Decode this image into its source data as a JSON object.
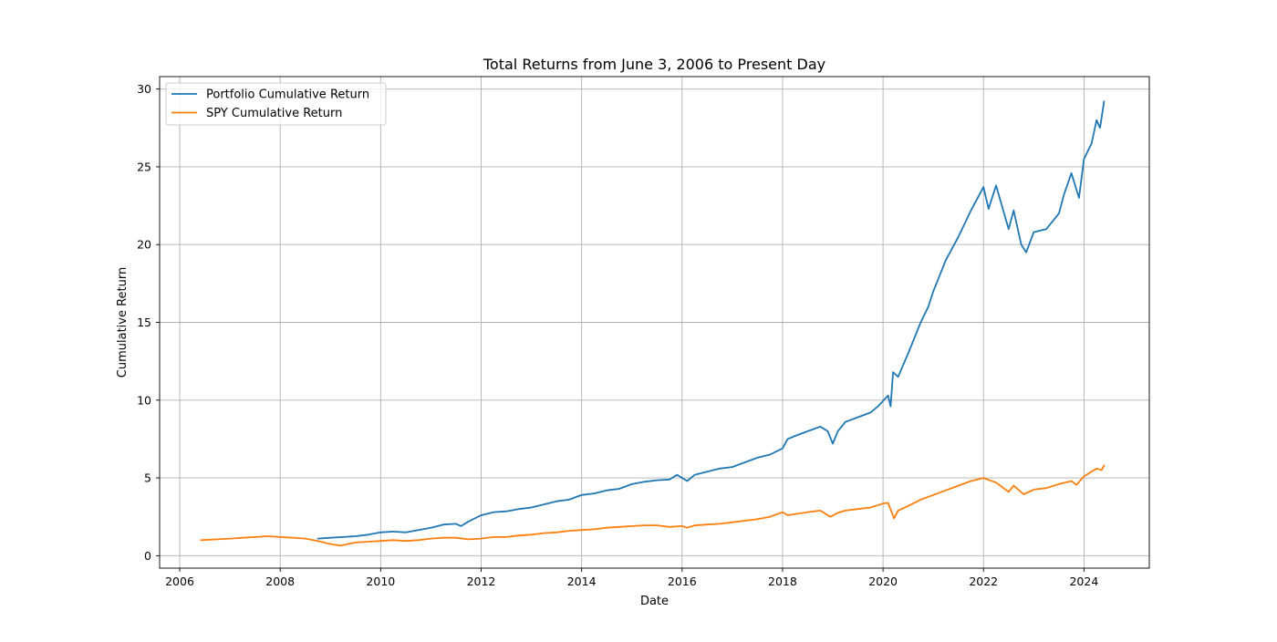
{
  "chart_data": {
    "type": "line",
    "title": "Total Returns from June 3, 2006 to Present Day",
    "xlabel": "Date",
    "ylabel": "Cumulative Return",
    "xlim": [
      2005.6,
      2025.3
    ],
    "ylim": [
      -0.8,
      30.8
    ],
    "xticks": [
      2006,
      2008,
      2010,
      2012,
      2014,
      2016,
      2018,
      2020,
      2022,
      2024
    ],
    "yticks": [
      0,
      5,
      10,
      15,
      20,
      25,
      30
    ],
    "grid": true,
    "legend_position": "top-left",
    "series": [
      {
        "name": "Portfolio Cumulative Return",
        "color": "#1f77b4",
        "points": [
          [
            2008.75,
            1.1
          ],
          [
            2009.0,
            1.15
          ],
          [
            2009.25,
            1.2
          ],
          [
            2009.5,
            1.25
          ],
          [
            2009.75,
            1.35
          ],
          [
            2010.0,
            1.5
          ],
          [
            2010.25,
            1.55
          ],
          [
            2010.5,
            1.5
          ],
          [
            2010.75,
            1.65
          ],
          [
            2011.0,
            1.8
          ],
          [
            2011.25,
            2.0
          ],
          [
            2011.5,
            2.05
          ],
          [
            2011.6,
            1.9
          ],
          [
            2011.75,
            2.2
          ],
          [
            2012.0,
            2.6
          ],
          [
            2012.25,
            2.8
          ],
          [
            2012.5,
            2.85
          ],
          [
            2012.75,
            3.0
          ],
          [
            2013.0,
            3.1
          ],
          [
            2013.25,
            3.3
          ],
          [
            2013.5,
            3.5
          ],
          [
            2013.75,
            3.6
          ],
          [
            2014.0,
            3.9
          ],
          [
            2014.25,
            4.0
          ],
          [
            2014.5,
            4.2
          ],
          [
            2014.75,
            4.3
          ],
          [
            2015.0,
            4.6
          ],
          [
            2015.25,
            4.75
          ],
          [
            2015.5,
            4.85
          ],
          [
            2015.75,
            4.9
          ],
          [
            2015.9,
            5.2
          ],
          [
            2016.1,
            4.8
          ],
          [
            2016.25,
            5.2
          ],
          [
            2016.5,
            5.4
          ],
          [
            2016.75,
            5.6
          ],
          [
            2017.0,
            5.7
          ],
          [
            2017.25,
            6.0
          ],
          [
            2017.5,
            6.3
          ],
          [
            2017.75,
            6.5
          ],
          [
            2018.0,
            6.9
          ],
          [
            2018.1,
            7.5
          ],
          [
            2018.25,
            7.7
          ],
          [
            2018.5,
            8.0
          ],
          [
            2018.75,
            8.3
          ],
          [
            2018.9,
            8.0
          ],
          [
            2019.0,
            7.2
          ],
          [
            2019.1,
            8.0
          ],
          [
            2019.25,
            8.6
          ],
          [
            2019.5,
            8.9
          ],
          [
            2019.75,
            9.2
          ],
          [
            2019.9,
            9.6
          ],
          [
            2020.1,
            10.3
          ],
          [
            2020.15,
            9.6
          ],
          [
            2020.2,
            11.8
          ],
          [
            2020.3,
            11.5
          ],
          [
            2020.5,
            13.0
          ],
          [
            2020.75,
            15.0
          ],
          [
            2020.9,
            16.0
          ],
          [
            2021.0,
            17.0
          ],
          [
            2021.25,
            19.0
          ],
          [
            2021.5,
            20.5
          ],
          [
            2021.75,
            22.2
          ],
          [
            2022.0,
            23.7
          ],
          [
            2022.1,
            22.3
          ],
          [
            2022.25,
            23.8
          ],
          [
            2022.5,
            21.0
          ],
          [
            2022.6,
            22.2
          ],
          [
            2022.75,
            20.0
          ],
          [
            2022.85,
            19.5
          ],
          [
            2023.0,
            20.8
          ],
          [
            2023.25,
            21.0
          ],
          [
            2023.5,
            22.0
          ],
          [
            2023.6,
            23.2
          ],
          [
            2023.75,
            24.6
          ],
          [
            2023.9,
            23.0
          ],
          [
            2024.0,
            25.5
          ],
          [
            2024.15,
            26.5
          ],
          [
            2024.25,
            28.0
          ],
          [
            2024.32,
            27.5
          ],
          [
            2024.4,
            29.2
          ]
        ]
      },
      {
        "name": "SPY Cumulative Return",
        "color": "#ff7f0e",
        "points": [
          [
            2006.42,
            1.0
          ],
          [
            2006.75,
            1.05
          ],
          [
            2007.0,
            1.1
          ],
          [
            2007.25,
            1.15
          ],
          [
            2007.5,
            1.2
          ],
          [
            2007.75,
            1.25
          ],
          [
            2008.0,
            1.2
          ],
          [
            2008.25,
            1.15
          ],
          [
            2008.5,
            1.1
          ],
          [
            2008.75,
            0.95
          ],
          [
            2009.0,
            0.75
          ],
          [
            2009.2,
            0.65
          ],
          [
            2009.5,
            0.85
          ],
          [
            2009.75,
            0.9
          ],
          [
            2010.0,
            0.95
          ],
          [
            2010.25,
            1.0
          ],
          [
            2010.5,
            0.95
          ],
          [
            2010.75,
            1.0
          ],
          [
            2011.0,
            1.1
          ],
          [
            2011.25,
            1.15
          ],
          [
            2011.5,
            1.15
          ],
          [
            2011.75,
            1.05
          ],
          [
            2012.0,
            1.1
          ],
          [
            2012.25,
            1.2
          ],
          [
            2012.5,
            1.2
          ],
          [
            2012.75,
            1.3
          ],
          [
            2013.0,
            1.35
          ],
          [
            2013.25,
            1.45
          ],
          [
            2013.5,
            1.5
          ],
          [
            2013.75,
            1.6
          ],
          [
            2014.0,
            1.65
          ],
          [
            2014.25,
            1.7
          ],
          [
            2014.5,
            1.8
          ],
          [
            2014.75,
            1.85
          ],
          [
            2015.0,
            1.9
          ],
          [
            2015.25,
            1.95
          ],
          [
            2015.5,
            1.95
          ],
          [
            2015.75,
            1.85
          ],
          [
            2016.0,
            1.9
          ],
          [
            2016.1,
            1.8
          ],
          [
            2016.25,
            1.95
          ],
          [
            2016.5,
            2.0
          ],
          [
            2016.75,
            2.05
          ],
          [
            2017.0,
            2.15
          ],
          [
            2017.25,
            2.25
          ],
          [
            2017.5,
            2.35
          ],
          [
            2017.75,
            2.5
          ],
          [
            2018.0,
            2.8
          ],
          [
            2018.1,
            2.6
          ],
          [
            2018.5,
            2.8
          ],
          [
            2018.75,
            2.9
          ],
          [
            2018.95,
            2.5
          ],
          [
            2019.1,
            2.75
          ],
          [
            2019.25,
            2.9
          ],
          [
            2019.5,
            3.0
          ],
          [
            2019.75,
            3.1
          ],
          [
            2020.0,
            3.35
          ],
          [
            2020.1,
            3.4
          ],
          [
            2020.22,
            2.4
          ],
          [
            2020.3,
            2.9
          ],
          [
            2020.5,
            3.2
          ],
          [
            2020.75,
            3.6
          ],
          [
            2021.0,
            3.9
          ],
          [
            2021.25,
            4.2
          ],
          [
            2021.5,
            4.5
          ],
          [
            2021.75,
            4.8
          ],
          [
            2022.0,
            5.0
          ],
          [
            2022.25,
            4.7
          ],
          [
            2022.5,
            4.1
          ],
          [
            2022.6,
            4.5
          ],
          [
            2022.8,
            3.95
          ],
          [
            2023.0,
            4.25
          ],
          [
            2023.25,
            4.35
          ],
          [
            2023.5,
            4.6
          ],
          [
            2023.75,
            4.8
          ],
          [
            2023.85,
            4.55
          ],
          [
            2024.0,
            5.1
          ],
          [
            2024.25,
            5.6
          ],
          [
            2024.35,
            5.5
          ],
          [
            2024.4,
            5.8
          ]
        ]
      }
    ]
  }
}
